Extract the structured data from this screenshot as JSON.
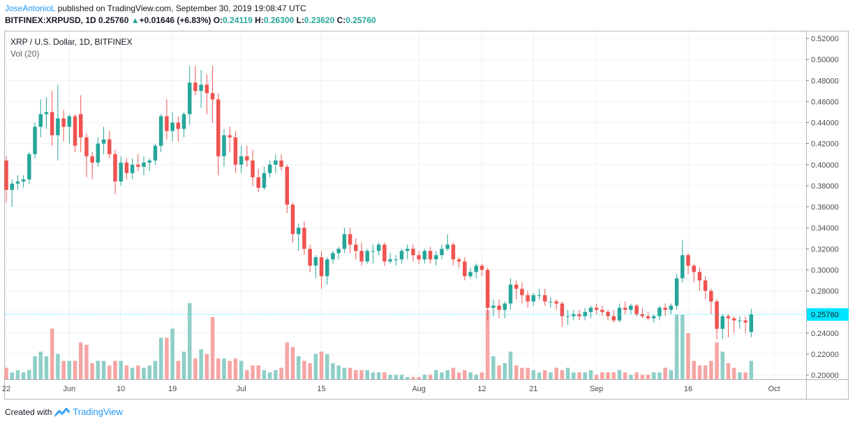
{
  "header": {
    "author": "JoseAntonioL",
    "published": "published on TradingView.com, September 30, 2019 19:08:47 UTC",
    "symbol": "BITFINEX:XRPUSD, 1D",
    "last": "0.25760",
    "arrow": "▲",
    "change": "+0.01646 (+6.83%)",
    "o_label": "O:",
    "o_val": "0.24119",
    "h_label": "H:",
    "h_val": "0.26300",
    "l_label": "L:",
    "l_val": "0.23620",
    "c_label": "C:",
    "c_val": "0.25760"
  },
  "legend": {
    "series": "XRP / U.S. Dollar, 1D, BITFINEX",
    "volume": "Vol (20)"
  },
  "footer": {
    "created": "Created with",
    "brand": "TradingView"
  },
  "colors": {
    "up": "#26a69a",
    "down": "#ef5350",
    "up_vol": "#8fcfc8",
    "down_vol": "#f5a5a3",
    "last_price": "#00e5ff",
    "grid": "#eef0f4"
  },
  "chart_data": {
    "type": "candlestick",
    "y_ticks": [
      "0.52000",
      "0.50000",
      "0.48000",
      "0.46000",
      "0.44000",
      "0.42000",
      "0.40000",
      "0.38000",
      "0.36000",
      "0.34000",
      "0.32000",
      "0.30000",
      "0.28000",
      "0.26000",
      "0.24000",
      "0.22000",
      "0.20000"
    ],
    "ylim": [
      0.195,
      0.525
    ],
    "x_ticks": [
      {
        "label": "22",
        "i": 0
      },
      {
        "label": "Jun",
        "i": 11
      },
      {
        "label": "10",
        "i": 20
      },
      {
        "label": "19",
        "i": 29
      },
      {
        "label": "Jul",
        "i": 41
      },
      {
        "label": "15",
        "i": 55
      },
      {
        "label": "Aug",
        "i": 72
      },
      {
        "label": "12",
        "i": 83
      },
      {
        "label": "21",
        "i": 92
      },
      {
        "label": "Sep",
        "i": 103
      },
      {
        "label": "16",
        "i": 119
      },
      {
        "label": "Oct",
        "i": 134
      }
    ],
    "last_price": "0.25760",
    "last_price_value": 0.2576,
    "candles": [
      [
        0.404,
        0.408,
        0.364,
        0.376,
        5
      ],
      [
        0.376,
        0.386,
        0.36,
        0.382,
        3
      ],
      [
        0.382,
        0.39,
        0.376,
        0.384,
        4
      ],
      [
        0.384,
        0.39,
        0.378,
        0.386,
        3
      ],
      [
        0.386,
        0.412,
        0.382,
        0.41,
        4
      ],
      [
        0.41,
        0.44,
        0.406,
        0.436,
        10
      ],
      [
        0.436,
        0.462,
        0.426,
        0.448,
        12
      ],
      [
        0.448,
        0.464,
        0.434,
        0.45,
        10
      ],
      [
        0.45,
        0.47,
        0.418,
        0.428,
        22
      ],
      [
        0.428,
        0.476,
        0.404,
        0.444,
        11
      ],
      [
        0.444,
        0.452,
        0.422,
        0.436,
        8
      ],
      [
        0.436,
        0.448,
        0.42,
        0.446,
        8
      ],
      [
        0.446,
        0.448,
        0.412,
        0.418,
        8
      ],
      [
        0.448,
        0.466,
        0.412,
        0.426,
        16
      ],
      [
        0.426,
        0.43,
        0.388,
        0.408,
        15
      ],
      [
        0.408,
        0.412,
        0.386,
        0.402,
        7
      ],
      [
        0.402,
        0.426,
        0.398,
        0.42,
        8
      ],
      [
        0.42,
        0.436,
        0.41,
        0.424,
        8
      ],
      [
        0.424,
        0.432,
        0.406,
        0.41,
        6
      ],
      [
        0.41,
        0.414,
        0.372,
        0.384,
        8
      ],
      [
        0.384,
        0.408,
        0.38,
        0.402,
        8
      ],
      [
        0.402,
        0.406,
        0.386,
        0.392,
        6
      ],
      [
        0.392,
        0.406,
        0.386,
        0.4,
        5
      ],
      [
        0.4,
        0.41,
        0.394,
        0.398,
        6
      ],
      [
        0.398,
        0.408,
        0.39,
        0.402,
        5
      ],
      [
        0.402,
        0.406,
        0.394,
        0.404,
        6
      ],
      [
        0.404,
        0.42,
        0.4,
        0.418,
        8
      ],
      [
        0.418,
        0.448,
        0.412,
        0.446,
        18
      ],
      [
        0.446,
        0.462,
        0.424,
        0.432,
        18
      ],
      [
        0.432,
        0.45,
        0.422,
        0.44,
        22
      ],
      [
        0.44,
        0.446,
        0.422,
        0.434,
        8
      ],
      [
        0.434,
        0.45,
        0.426,
        0.448,
        12
      ],
      [
        0.448,
        0.494,
        0.438,
        0.478,
        33
      ],
      [
        0.478,
        0.494,
        0.466,
        0.47,
        9
      ],
      [
        0.47,
        0.49,
        0.454,
        0.476,
        13
      ],
      [
        0.476,
        0.486,
        0.448,
        0.468,
        11
      ],
      [
        0.468,
        0.494,
        0.44,
        0.462,
        27
      ],
      [
        0.462,
        0.468,
        0.39,
        0.408,
        9
      ],
      [
        0.408,
        0.434,
        0.398,
        0.428,
        9
      ],
      [
        0.428,
        0.436,
        0.412,
        0.426,
        8
      ],
      [
        0.426,
        0.432,
        0.392,
        0.4,
        9
      ],
      [
        0.4,
        0.418,
        0.392,
        0.408,
        8
      ],
      [
        0.408,
        0.418,
        0.398,
        0.404,
        4
      ],
      [
        0.404,
        0.414,
        0.38,
        0.388,
        6
      ],
      [
        0.388,
        0.396,
        0.374,
        0.378,
        6
      ],
      [
        0.378,
        0.398,
        0.376,
        0.392,
        4
      ],
      [
        0.392,
        0.404,
        0.388,
        0.4,
        3
      ],
      [
        0.4,
        0.41,
        0.392,
        0.404,
        4
      ],
      [
        0.404,
        0.41,
        0.394,
        0.398,
        5
      ],
      [
        0.398,
        0.4,
        0.354,
        0.362,
        16
      ],
      [
        0.362,
        0.364,
        0.326,
        0.334,
        14
      ],
      [
        0.334,
        0.344,
        0.318,
        0.34,
        10
      ],
      [
        0.34,
        0.346,
        0.314,
        0.32,
        8
      ],
      [
        0.32,
        0.324,
        0.298,
        0.304,
        7
      ],
      [
        0.304,
        0.314,
        0.292,
        0.312,
        11
      ],
      [
        0.312,
        0.318,
        0.282,
        0.294,
        12
      ],
      [
        0.294,
        0.312,
        0.286,
        0.31,
        11
      ],
      [
        0.31,
        0.318,
        0.306,
        0.316,
        7
      ],
      [
        0.316,
        0.322,
        0.31,
        0.32,
        6
      ],
      [
        0.32,
        0.34,
        0.316,
        0.334,
        5
      ],
      [
        0.334,
        0.34,
        0.316,
        0.324,
        5
      ],
      [
        0.324,
        0.33,
        0.31,
        0.318,
        4
      ],
      [
        0.318,
        0.326,
        0.304,
        0.308,
        4
      ],
      [
        0.308,
        0.32,
        0.306,
        0.318,
        4
      ],
      [
        0.318,
        0.324,
        0.306,
        0.318,
        3
      ],
      [
        0.318,
        0.326,
        0.314,
        0.324,
        3
      ],
      [
        0.324,
        0.326,
        0.304,
        0.308,
        3
      ],
      [
        0.308,
        0.316,
        0.306,
        0.31,
        2
      ],
      [
        0.31,
        0.314,
        0.304,
        0.31,
        2
      ],
      [
        0.31,
        0.32,
        0.306,
        0.318,
        2
      ],
      [
        0.318,
        0.324,
        0.31,
        0.32,
        1
      ],
      [
        0.32,
        0.324,
        0.308,
        0.314,
        1
      ],
      [
        0.314,
        0.318,
        0.306,
        0.31,
        1
      ],
      [
        0.31,
        0.32,
        0.306,
        0.318,
        2
      ],
      [
        0.318,
        0.322,
        0.306,
        0.31,
        2
      ],
      [
        0.31,
        0.318,
        0.304,
        0.314,
        4
      ],
      [
        0.314,
        0.324,
        0.31,
        0.32,
        3
      ],
      [
        0.32,
        0.334,
        0.318,
        0.324,
        4
      ],
      [
        0.324,
        0.326,
        0.304,
        0.31,
        5
      ],
      [
        0.31,
        0.312,
        0.302,
        0.308,
        3
      ],
      [
        0.308,
        0.312,
        0.29,
        0.294,
        4
      ],
      [
        0.294,
        0.302,
        0.292,
        0.298,
        3
      ],
      [
        0.298,
        0.306,
        0.292,
        0.304,
        2
      ],
      [
        0.304,
        0.306,
        0.294,
        0.3,
        3
      ],
      [
        0.3,
        0.302,
        0.252,
        0.264,
        30
      ],
      [
        0.264,
        0.272,
        0.256,
        0.266,
        10
      ],
      [
        0.266,
        0.272,
        0.254,
        0.262,
        6
      ],
      [
        0.262,
        0.27,
        0.254,
        0.268,
        7
      ],
      [
        0.268,
        0.292,
        0.262,
        0.286,
        12
      ],
      [
        0.286,
        0.29,
        0.272,
        0.282,
        6
      ],
      [
        0.282,
        0.288,
        0.268,
        0.276,
        5
      ],
      [
        0.276,
        0.28,
        0.264,
        0.27,
        5
      ],
      [
        0.27,
        0.278,
        0.266,
        0.276,
        4
      ],
      [
        0.276,
        0.282,
        0.272,
        0.276,
        3
      ],
      [
        0.276,
        0.282,
        0.266,
        0.27,
        4
      ],
      [
        0.27,
        0.274,
        0.264,
        0.27,
        3
      ],
      [
        0.27,
        0.272,
        0.262,
        0.268,
        5
      ],
      [
        0.268,
        0.27,
        0.246,
        0.256,
        4
      ],
      [
        0.256,
        0.262,
        0.248,
        0.256,
        5
      ],
      [
        0.256,
        0.262,
        0.252,
        0.258,
        3
      ],
      [
        0.258,
        0.262,
        0.252,
        0.256,
        3
      ],
      [
        0.256,
        0.264,
        0.252,
        0.26,
        3
      ],
      [
        0.26,
        0.266,
        0.254,
        0.264,
        4
      ],
      [
        0.264,
        0.268,
        0.258,
        0.262,
        2
      ],
      [
        0.262,
        0.266,
        0.256,
        0.26,
        3
      ],
      [
        0.26,
        0.262,
        0.252,
        0.256,
        3
      ],
      [
        0.256,
        0.262,
        0.25,
        0.252,
        3
      ],
      [
        0.252,
        0.268,
        0.25,
        0.264,
        4
      ],
      [
        0.264,
        0.27,
        0.258,
        0.262,
        3
      ],
      [
        0.262,
        0.268,
        0.258,
        0.266,
        2
      ],
      [
        0.266,
        0.268,
        0.256,
        0.258,
        3
      ],
      [
        0.258,
        0.264,
        0.254,
        0.256,
        2
      ],
      [
        0.256,
        0.26,
        0.252,
        0.254,
        2
      ],
      [
        0.254,
        0.258,
        0.25,
        0.256,
        3
      ],
      [
        0.256,
        0.266,
        0.252,
        0.264,
        3
      ],
      [
        0.264,
        0.268,
        0.256,
        0.262,
        5
      ],
      [
        0.262,
        0.268,
        0.258,
        0.266,
        4
      ],
      [
        0.266,
        0.296,
        0.262,
        0.292,
        28
      ],
      [
        0.292,
        0.328,
        0.288,
        0.314,
        28
      ],
      [
        0.314,
        0.316,
        0.296,
        0.304,
        20
      ],
      [
        0.304,
        0.306,
        0.288,
        0.298,
        8
      ],
      [
        0.298,
        0.302,
        0.28,
        0.29,
        6
      ],
      [
        0.29,
        0.294,
        0.272,
        0.28,
        6
      ],
      [
        0.28,
        0.282,
        0.258,
        0.27,
        8
      ],
      [
        0.27,
        0.272,
        0.234,
        0.244,
        16
      ],
      [
        0.244,
        0.258,
        0.234,
        0.256,
        12
      ],
      [
        0.256,
        0.258,
        0.236,
        0.254,
        7
      ],
      [
        0.254,
        0.256,
        0.24,
        0.252,
        5
      ],
      [
        0.252,
        0.256,
        0.244,
        0.252,
        3
      ],
      [
        0.252,
        0.256,
        0.24,
        0.25,
        3
      ],
      [
        0.241,
        0.263,
        0.236,
        0.2576,
        8
      ]
    ]
  }
}
